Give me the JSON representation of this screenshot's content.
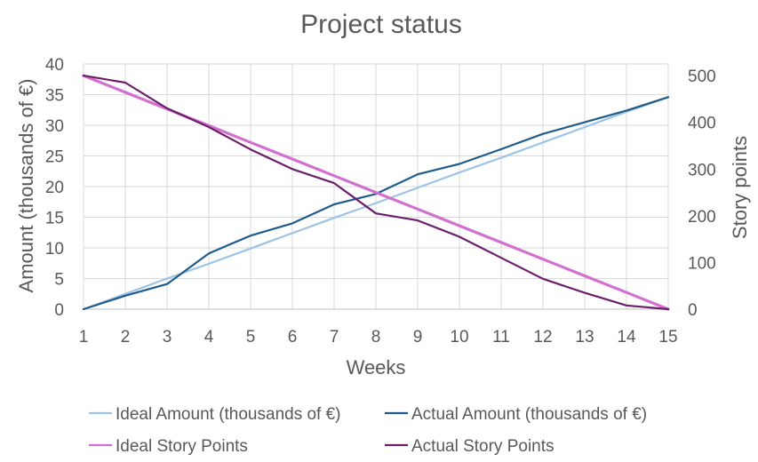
{
  "chart_data": {
    "type": "line",
    "title": "Project status",
    "xlabel": "Weeks",
    "ylabel": "Amount (thousands of €)",
    "y2label": "Story points",
    "x": [
      1,
      2,
      3,
      4,
      5,
      6,
      7,
      8,
      9,
      10,
      11,
      12,
      13,
      14,
      15
    ],
    "ylim": [
      0,
      40
    ],
    "y2lim": [
      0,
      525
    ],
    "yticks": [
      0,
      5,
      10,
      15,
      20,
      25,
      30,
      35,
      40
    ],
    "y2ticks": [
      0,
      100,
      200,
      300,
      400,
      500
    ],
    "grid": true,
    "legend_position": "bottom",
    "series": [
      {
        "name": "Ideal Amount (thousands of €)",
        "axis": "left",
        "color": "#9dc3e6",
        "values": [
          0,
          2.5,
          5,
          7.4,
          9.9,
          12.4,
          14.9,
          17.3,
          19.8,
          22.3,
          24.7,
          27.2,
          29.7,
          32.2,
          34.6
        ]
      },
      {
        "name": "Actual Amount (thousands of €)",
        "axis": "left",
        "color": "#1f5c8b",
        "values": [
          0,
          2.2,
          4.1,
          9.1,
          12,
          14,
          17.1,
          18.8,
          22,
          23.7,
          26.1,
          28.6,
          30.5,
          32.4,
          34.6
        ]
      },
      {
        "name": "Ideal Story Points",
        "axis": "right",
        "color": "#d36fd0",
        "values": [
          500,
          464.3,
          428.6,
          392.9,
          357.1,
          321.4,
          285.7,
          250,
          214.3,
          178.6,
          142.9,
          107.1,
          71.4,
          35.7,
          0
        ]
      },
      {
        "name": "Actual Story Points",
        "axis": "right",
        "color": "#6b1f6b",
        "values": [
          500,
          485,
          430,
          390,
          342,
          300,
          270,
          205,
          190,
          155,
          110,
          65,
          35,
          8,
          0
        ]
      }
    ]
  }
}
